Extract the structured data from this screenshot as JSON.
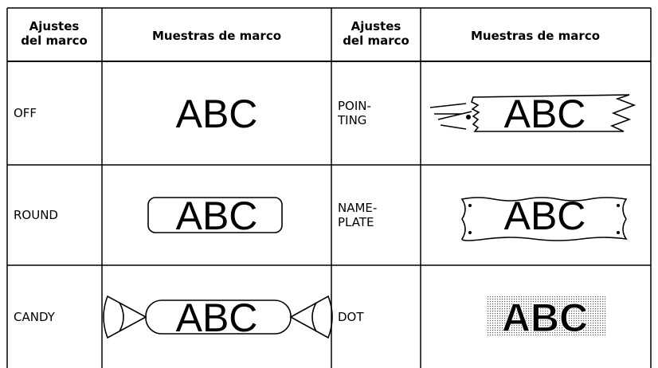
{
  "table": {
    "header": [
      [
        "Ajustes",
        "del marco"
      ],
      [
        "Muestras de marco"
      ],
      [
        "Ajustes",
        "del marco"
      ],
      [
        "Muestras de marco"
      ]
    ],
    "rows": [
      [
        [
          "OFF"
        ],
        "ABC",
        [
          "POIN-",
          "TING"
        ],
        "ABC"
      ],
      [
        [
          "ROUND"
        ],
        "ABC",
        [
          "NAME-",
          "PLATE"
        ],
        "ABC"
      ],
      [
        [
          "CANDY"
        ],
        "ABC",
        [
          "DOT"
        ],
        "ABC"
      ]
    ]
  }
}
